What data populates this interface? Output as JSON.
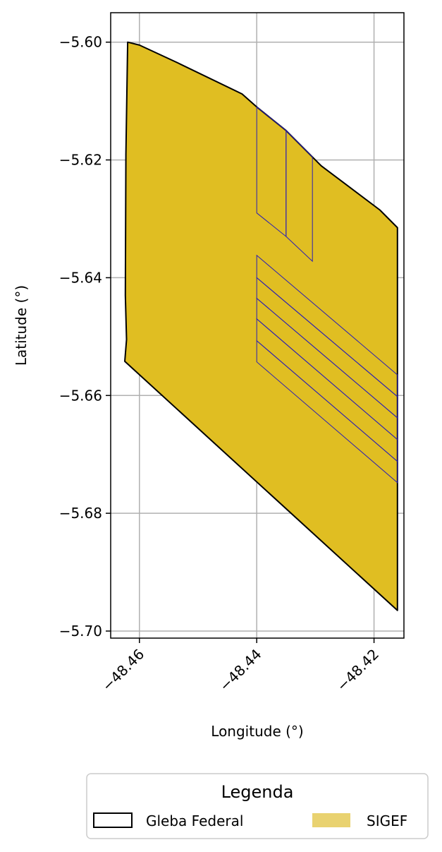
{
  "map": {
    "xlabel": "Longitude (°)",
    "ylabel": "Latitude (°)",
    "xlim": [
      -48.4649,
      -48.4149
    ],
    "ylim": [
      -5.7012,
      -5.595
    ],
    "xticks": [
      {
        "value": -48.46,
        "label": "−48.46"
      },
      {
        "value": -48.44,
        "label": "−48.44"
      },
      {
        "value": -48.42,
        "label": "−48.42"
      }
    ],
    "yticks": [
      {
        "value": -5.6,
        "label": "−5.60"
      },
      {
        "value": -5.62,
        "label": "−5.62"
      },
      {
        "value": -5.64,
        "label": "−5.64"
      },
      {
        "value": -5.66,
        "label": "−5.66"
      },
      {
        "value": -5.68,
        "label": "−5.68"
      },
      {
        "value": -5.7,
        "label": "−5.70"
      }
    ],
    "grid": true
  },
  "chart_data": {
    "type": "map",
    "gleba_federal": [
      [
        -48.462,
        -5.6
      ],
      [
        -48.46,
        -5.6005
      ],
      [
        -48.4535,
        -5.6035
      ],
      [
        -48.4425,
        -5.6088
      ],
      [
        -48.44,
        -5.611
      ],
      [
        -48.435,
        -5.615
      ],
      [
        -48.429,
        -5.621
      ],
      [
        -48.419,
        -5.6285
      ],
      [
        -48.416,
        -5.6315
      ],
      [
        -48.416,
        -5.65
      ],
      [
        -48.416,
        -5.6965
      ],
      [
        -48.4625,
        -5.6542
      ],
      [
        -48.4622,
        -5.6505
      ],
      [
        -48.4624,
        -5.643
      ],
      [
        -48.4623,
        -5.619
      ],
      [
        -48.462,
        -5.6
      ]
    ],
    "sigef_color": "#e0be22",
    "sigef_edge_color": "#2a1fb4",
    "gleba_edge_color": "#000000",
    "sigef_parcels": [
      [
        [
          -48.44,
          -5.611
        ],
        [
          -48.435,
          -5.615
        ],
        [
          -48.435,
          -5.633
        ],
        [
          -48.44,
          -5.629
        ]
      ],
      [
        [
          -48.435,
          -5.615
        ],
        [
          -48.4305,
          -5.6195
        ],
        [
          -48.4305,
          -5.6372
        ],
        [
          -48.435,
          -5.633
        ]
      ],
      [
        [
          -48.44,
          -5.6362
        ],
        [
          -48.416,
          -5.6565
        ],
        [
          -48.416,
          -5.6602
        ],
        [
          -48.44,
          -5.64
        ]
      ],
      [
        [
          -48.44,
          -5.64
        ],
        [
          -48.416,
          -5.6602
        ],
        [
          -48.416,
          -5.6638
        ],
        [
          -48.44,
          -5.6435
        ]
      ],
      [
        [
          -48.44,
          -5.6435
        ],
        [
          -48.416,
          -5.6638
        ],
        [
          -48.416,
          -5.6675
        ],
        [
          -48.44,
          -5.647
        ]
      ],
      [
        [
          -48.44,
          -5.647
        ],
        [
          -48.416,
          -5.6675
        ],
        [
          -48.416,
          -5.6712
        ],
        [
          -48.44,
          -5.6507
        ]
      ],
      [
        [
          -48.44,
          -5.6507
        ],
        [
          -48.416,
          -5.6712
        ],
        [
          -48.416,
          -5.6748
        ],
        [
          -48.44,
          -5.6543
        ]
      ]
    ]
  },
  "legend": {
    "title": "Legenda",
    "items": [
      {
        "label": "Gleba Federal",
        "swatch": "outline",
        "color": "#000000"
      },
      {
        "label": "SIGEF",
        "swatch": "fill",
        "color": "#e9d270"
      }
    ]
  }
}
